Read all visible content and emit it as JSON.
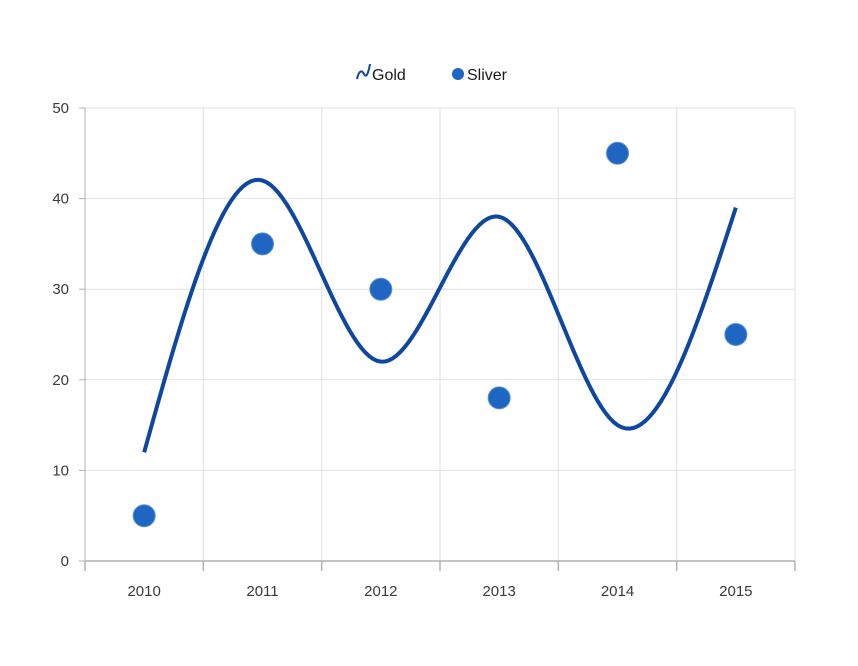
{
  "chart_data": {
    "type": "line",
    "title": "",
    "xlabel": "",
    "ylabel": "",
    "categories": [
      "2010",
      "2011",
      "2012",
      "2013",
      "2014",
      "2015"
    ],
    "ylim": [
      0,
      50
    ],
    "yticks": [
      "0",
      "10",
      "20",
      "30",
      "40",
      "50"
    ],
    "grid": true,
    "legend_position": "top-center",
    "series": [
      {
        "name": "Gold",
        "render": "spline",
        "color": "#0d47a1",
        "values": [
          12,
          42,
          22,
          38,
          15,
          39
        ]
      },
      {
        "name": "Sliver",
        "render": "scatter",
        "color": "#1e66c2",
        "values": [
          5,
          35,
          30,
          18,
          45,
          25
        ]
      }
    ]
  },
  "legend": {
    "items": [
      {
        "label": "Gold",
        "icon": "spline-icon"
      },
      {
        "label": "Sliver",
        "icon": "circle-icon"
      }
    ]
  }
}
